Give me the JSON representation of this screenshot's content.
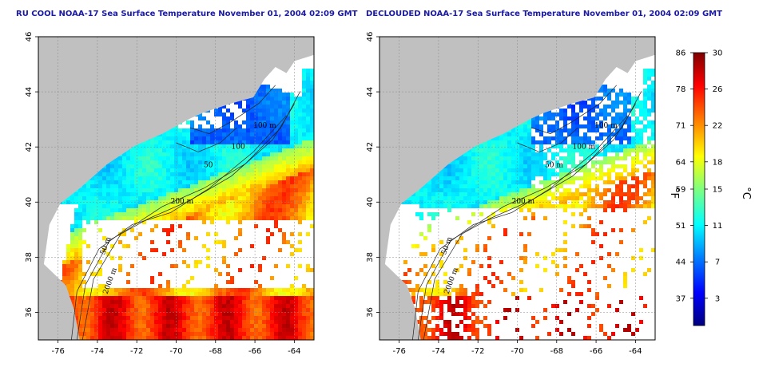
{
  "panels": [
    {
      "title": "RU COOL NOAA-17 Sea Surface Temperature November 01, 2004 02:09 GMT",
      "decloud": false,
      "contour_labels": [
        "100 m",
        "100",
        "50",
        "200 m",
        "50 m",
        "2000 m"
      ]
    },
    {
      "title": "DECLOUDED NOAA-17 Sea Surface Temperature November 01, 2004 02:09 GMT",
      "decloud": true,
      "contour_labels": [
        "100 m",
        "100 m",
        "50 m",
        "200 m",
        "50 m",
        "2000 m"
      ]
    }
  ],
  "map": {
    "lon_range": [
      -77,
      -63
    ],
    "lat_range": [
      35,
      46
    ],
    "lon_ticks": [
      "-76",
      "-74",
      "-72",
      "-70",
      "-68",
      "-66",
      "-64"
    ],
    "lat_ticks": [
      "36",
      "38",
      "40",
      "42",
      "44",
      "46"
    ]
  },
  "colorbar": {
    "celsius_unit": "°C",
    "fahrenheit_unit": "°F",
    "celsius_range": [
      0,
      30
    ],
    "celsius_ticks": [
      "30",
      "26",
      "22",
      "18",
      "15",
      "11",
      "7",
      "3"
    ],
    "fahrenheit_ticks": [
      "86",
      "78",
      "71",
      "64",
      "59",
      "51",
      "44",
      "37"
    ],
    "colors": [
      "#00007f",
      "#0000ff",
      "#007fff",
      "#00ffff",
      "#7fff7f",
      "#ffff00",
      "#ff7f00",
      "#ff0000",
      "#7f0000"
    ]
  },
  "colors": {
    "land": "#c0c0c0",
    "cloud": "#ffffff",
    "axis_title": "#1a1aa6"
  }
}
